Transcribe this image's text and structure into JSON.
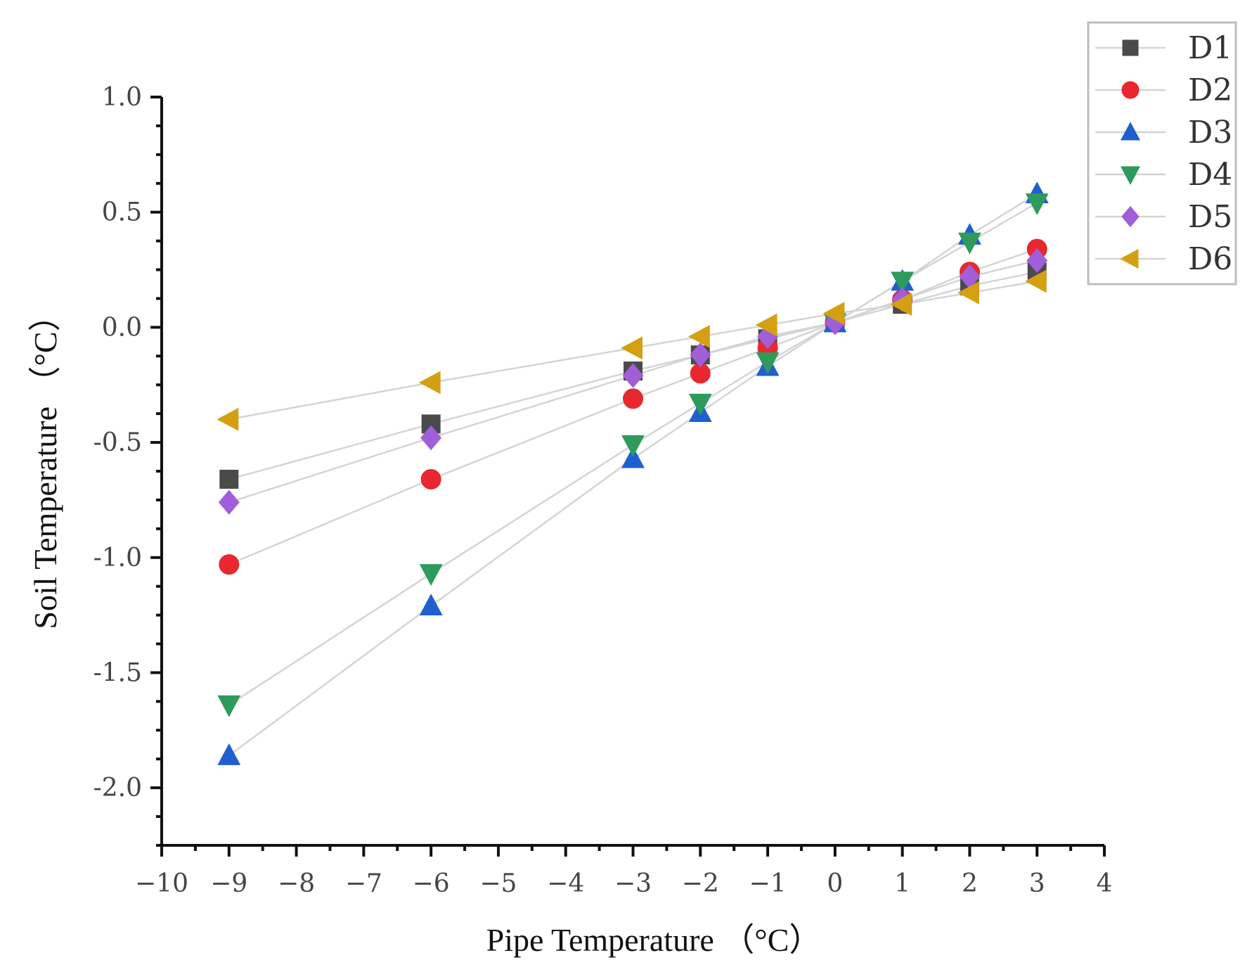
{
  "chart_data": {
    "type": "scatter",
    "title": "",
    "xlabel": "Pipe Temperature （°C）",
    "ylabel": "Soil Temperature （°C）",
    "xlim": [
      -10,
      4
    ],
    "ylim": [
      -2.25,
      1.0
    ],
    "xticks": [
      -10,
      -9,
      -8,
      -7,
      -6,
      -5,
      -4,
      -3,
      -2,
      -1,
      0,
      1,
      2,
      3,
      4
    ],
    "xtick_labels": [
      "−10",
      "−9",
      "−8",
      "−7",
      "−6",
      "−5",
      "−4",
      "−3",
      "−2",
      "−1",
      "0",
      "1",
      "2",
      "3",
      "4"
    ],
    "yticks": [
      1.0,
      0.5,
      0.0,
      -0.5,
      -1.0,
      -1.5,
      -2.0
    ],
    "ytick_labels": [
      "1.0",
      "0.5",
      "0.0",
      "-0.5",
      "-1.0",
      "-1.5",
      "-2.0"
    ],
    "legend_position": "top-right",
    "x": [
      -9,
      -6,
      -3,
      -2,
      -1,
      0,
      1,
      2,
      3
    ],
    "series": [
      {
        "name": "D1",
        "marker": "square",
        "color": "#4a4a4a",
        "values": [
          -0.66,
          -0.42,
          -0.19,
          -0.12,
          -0.05,
          0.02,
          0.1,
          0.18,
          0.24
        ]
      },
      {
        "name": "D2",
        "marker": "circle",
        "color": "#e8282e",
        "values": [
          -1.03,
          -0.66,
          -0.31,
          -0.2,
          -0.09,
          0.02,
          0.12,
          0.24,
          0.34
        ]
      },
      {
        "name": "D3",
        "marker": "triangle-up",
        "color": "#1f5fd0",
        "values": [
          -1.86,
          -1.21,
          -0.57,
          -0.37,
          -0.17,
          0.02,
          0.2,
          0.4,
          0.58
        ]
      },
      {
        "name": "D4",
        "marker": "triangle-down",
        "color": "#2e9a5b",
        "values": [
          -1.64,
          -1.07,
          -0.51,
          -0.33,
          -0.15,
          0.02,
          0.2,
          0.37,
          0.54
        ]
      },
      {
        "name": "D5",
        "marker": "diamond",
        "color": "#a05fd8",
        "values": [
          -0.76,
          -0.48,
          -0.21,
          -0.12,
          -0.04,
          0.02,
          0.12,
          0.22,
          0.29
        ]
      },
      {
        "name": "D6",
        "marker": "triangle-left",
        "color": "#d4a012",
        "values": [
          -0.4,
          -0.24,
          -0.09,
          -0.04,
          0.01,
          0.06,
          0.1,
          0.15,
          0.2
        ]
      }
    ]
  }
}
